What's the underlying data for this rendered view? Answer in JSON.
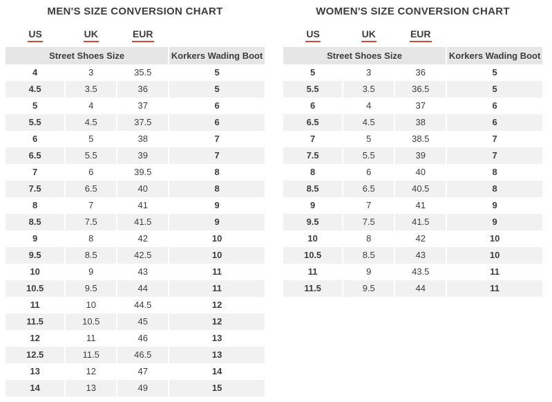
{
  "chart_data": [
    {
      "type": "table",
      "title": "MEN'S SIZE CONVERSION CHART",
      "column_headers": [
        "US",
        "UK",
        "EUR"
      ],
      "group_headers": [
        "Street Shoes Size",
        "Korkers Wading Boot"
      ],
      "rows": [
        [
          "4",
          "3",
          "35.5",
          "5"
        ],
        [
          "4.5",
          "3.5",
          "36",
          "5"
        ],
        [
          "5",
          "4",
          "37",
          "6"
        ],
        [
          "5.5",
          "4.5",
          "37.5",
          "6"
        ],
        [
          "6",
          "5",
          "38",
          "7"
        ],
        [
          "6.5",
          "5.5",
          "39",
          "7"
        ],
        [
          "7",
          "6",
          "39.5",
          "8"
        ],
        [
          "7.5",
          "6.5",
          "40",
          "8"
        ],
        [
          "8",
          "7",
          "41",
          "9"
        ],
        [
          "8.5",
          "7.5",
          "41.5",
          "9"
        ],
        [
          "9",
          "8",
          "42",
          "10"
        ],
        [
          "9.5",
          "8.5",
          "42.5",
          "10"
        ],
        [
          "10",
          "9",
          "43",
          "11"
        ],
        [
          "10.5",
          "9.5",
          "44",
          "11"
        ],
        [
          "11",
          "10",
          "44.5",
          "12"
        ],
        [
          "11.5",
          "10.5",
          "45",
          "12"
        ],
        [
          "12",
          "11",
          "46",
          "13"
        ],
        [
          "12.5",
          "11.5",
          "46.5",
          "13"
        ],
        [
          "13",
          "12",
          "47",
          "14"
        ],
        [
          "14",
          "13",
          "49",
          "15"
        ]
      ]
    },
    {
      "type": "table",
      "title": "WOMEN'S SIZE CONVERSION CHART",
      "column_headers": [
        "US",
        "UK",
        "EUR"
      ],
      "group_headers": [
        "Street Shoes Size",
        "Korkers Wading Boot"
      ],
      "rows": [
        [
          "5",
          "3",
          "36",
          "5"
        ],
        [
          "5.5",
          "3.5",
          "36.5",
          "5"
        ],
        [
          "6",
          "4",
          "37",
          "6"
        ],
        [
          "6.5",
          "4.5",
          "38",
          "6"
        ],
        [
          "7",
          "5",
          "38.5",
          "7"
        ],
        [
          "7.5",
          "5.5",
          "39",
          "7"
        ],
        [
          "8",
          "6",
          "40",
          "8"
        ],
        [
          "8.5",
          "6.5",
          "40.5",
          "8"
        ],
        [
          "9",
          "7",
          "41",
          "9"
        ],
        [
          "9.5",
          "7.5",
          "41.5",
          "9"
        ],
        [
          "10",
          "8",
          "42",
          "10"
        ],
        [
          "10.5",
          "8.5",
          "43",
          "10"
        ],
        [
          "11",
          "9",
          "43.5",
          "11"
        ],
        [
          "11.5",
          "9.5",
          "44",
          "11"
        ]
      ]
    }
  ],
  "colors": {
    "accent": "#cc4a31",
    "text": "#3d3d3d",
    "subheader_bg": "#e6e6e6",
    "row_alt_bg": "#f1f1f1",
    "cell_border": "#ffffff"
  }
}
